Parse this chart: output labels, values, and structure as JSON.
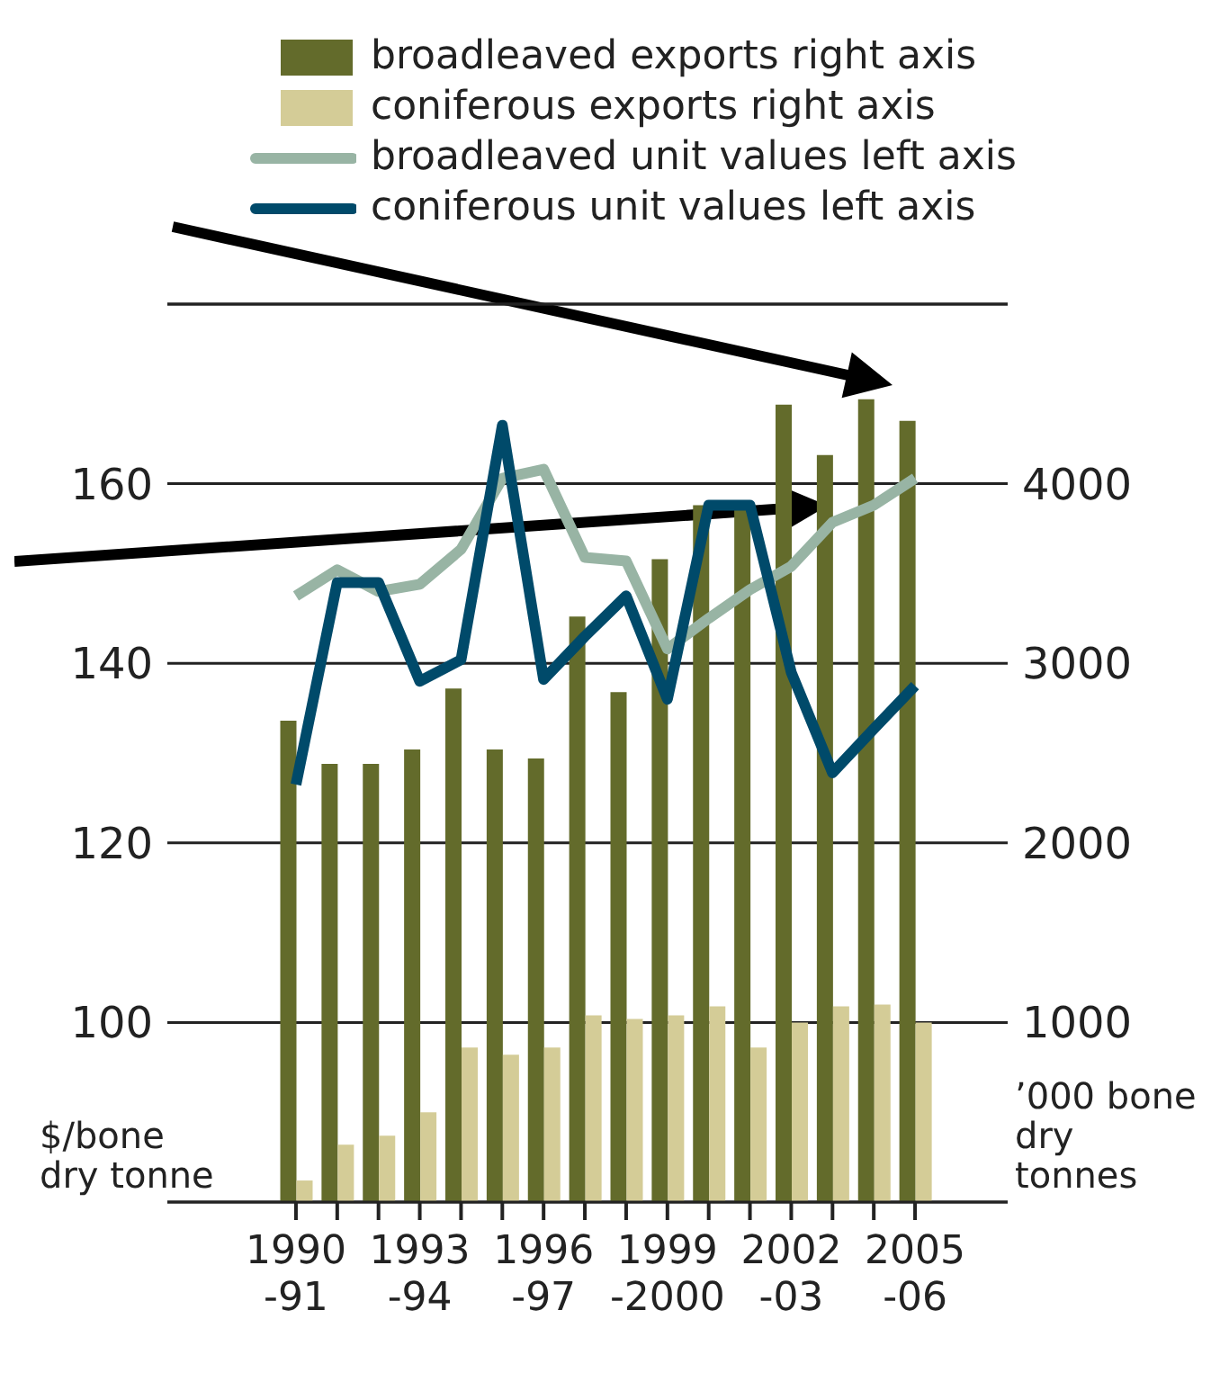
{
  "chart_data": {
    "type": "bar",
    "ylabel": "$/bone dry tonne",
    "y2label": "’000 bone dry tonnes",
    "categories": [
      "1990-91",
      null,
      null,
      "1993-94",
      null,
      null,
      "1996-97",
      null,
      null,
      "1999-2000",
      null,
      null,
      "2002-03",
      null,
      null,
      "2005-06"
    ],
    "series": [
      {
        "name": "broadleaved exports right axis",
        "axis": "y2",
        "color": "#636b2b",
        "values": [
          2680,
          2440,
          2440,
          2520,
          2860,
          2520,
          2470,
          3260,
          2840,
          3580,
          3880,
          3880,
          4440,
          4160,
          4470,
          4350
        ]
      },
      {
        "name": "coniferous exports right axis",
        "axis": "y2",
        "color": "#d4cc97",
        "values": [
          120,
          320,
          370,
          500,
          860,
          820,
          860,
          1040,
          1020,
          1040,
          1090,
          860,
          1000,
          1090,
          1100,
          1000
        ]
      },
      {
        "name": "broadleaved unit values left axis",
        "type": "line",
        "axis": "y",
        "color": "#98b4a4",
        "values": [
          147.5,
          150.4,
          148,
          148.8,
          152.7,
          160.6,
          161.6,
          151.8,
          151.4,
          141.6,
          145,
          148.2,
          150.8,
          155.7,
          157.6,
          160.6
        ]
      },
      {
        "name": "coniferous unit values left axis",
        "type": "line",
        "axis": "y",
        "color": "#004a6a",
        "values": [
          126.5,
          149,
          149,
          138,
          140.4,
          166.5,
          138.2,
          143,
          147.5,
          136,
          157.6,
          157.6,
          139,
          127.8,
          132.7,
          137.5
        ]
      }
    ],
    "ylim": [
      80,
      180
    ],
    "yticks": [
      100,
      120,
      140,
      160
    ],
    "y2lim": [
      0,
      5000
    ],
    "y2ticks": [
      1000,
      2000,
      3000,
      4000
    ],
    "grid": "y",
    "legend": "top",
    "line_style": "solid"
  }
}
